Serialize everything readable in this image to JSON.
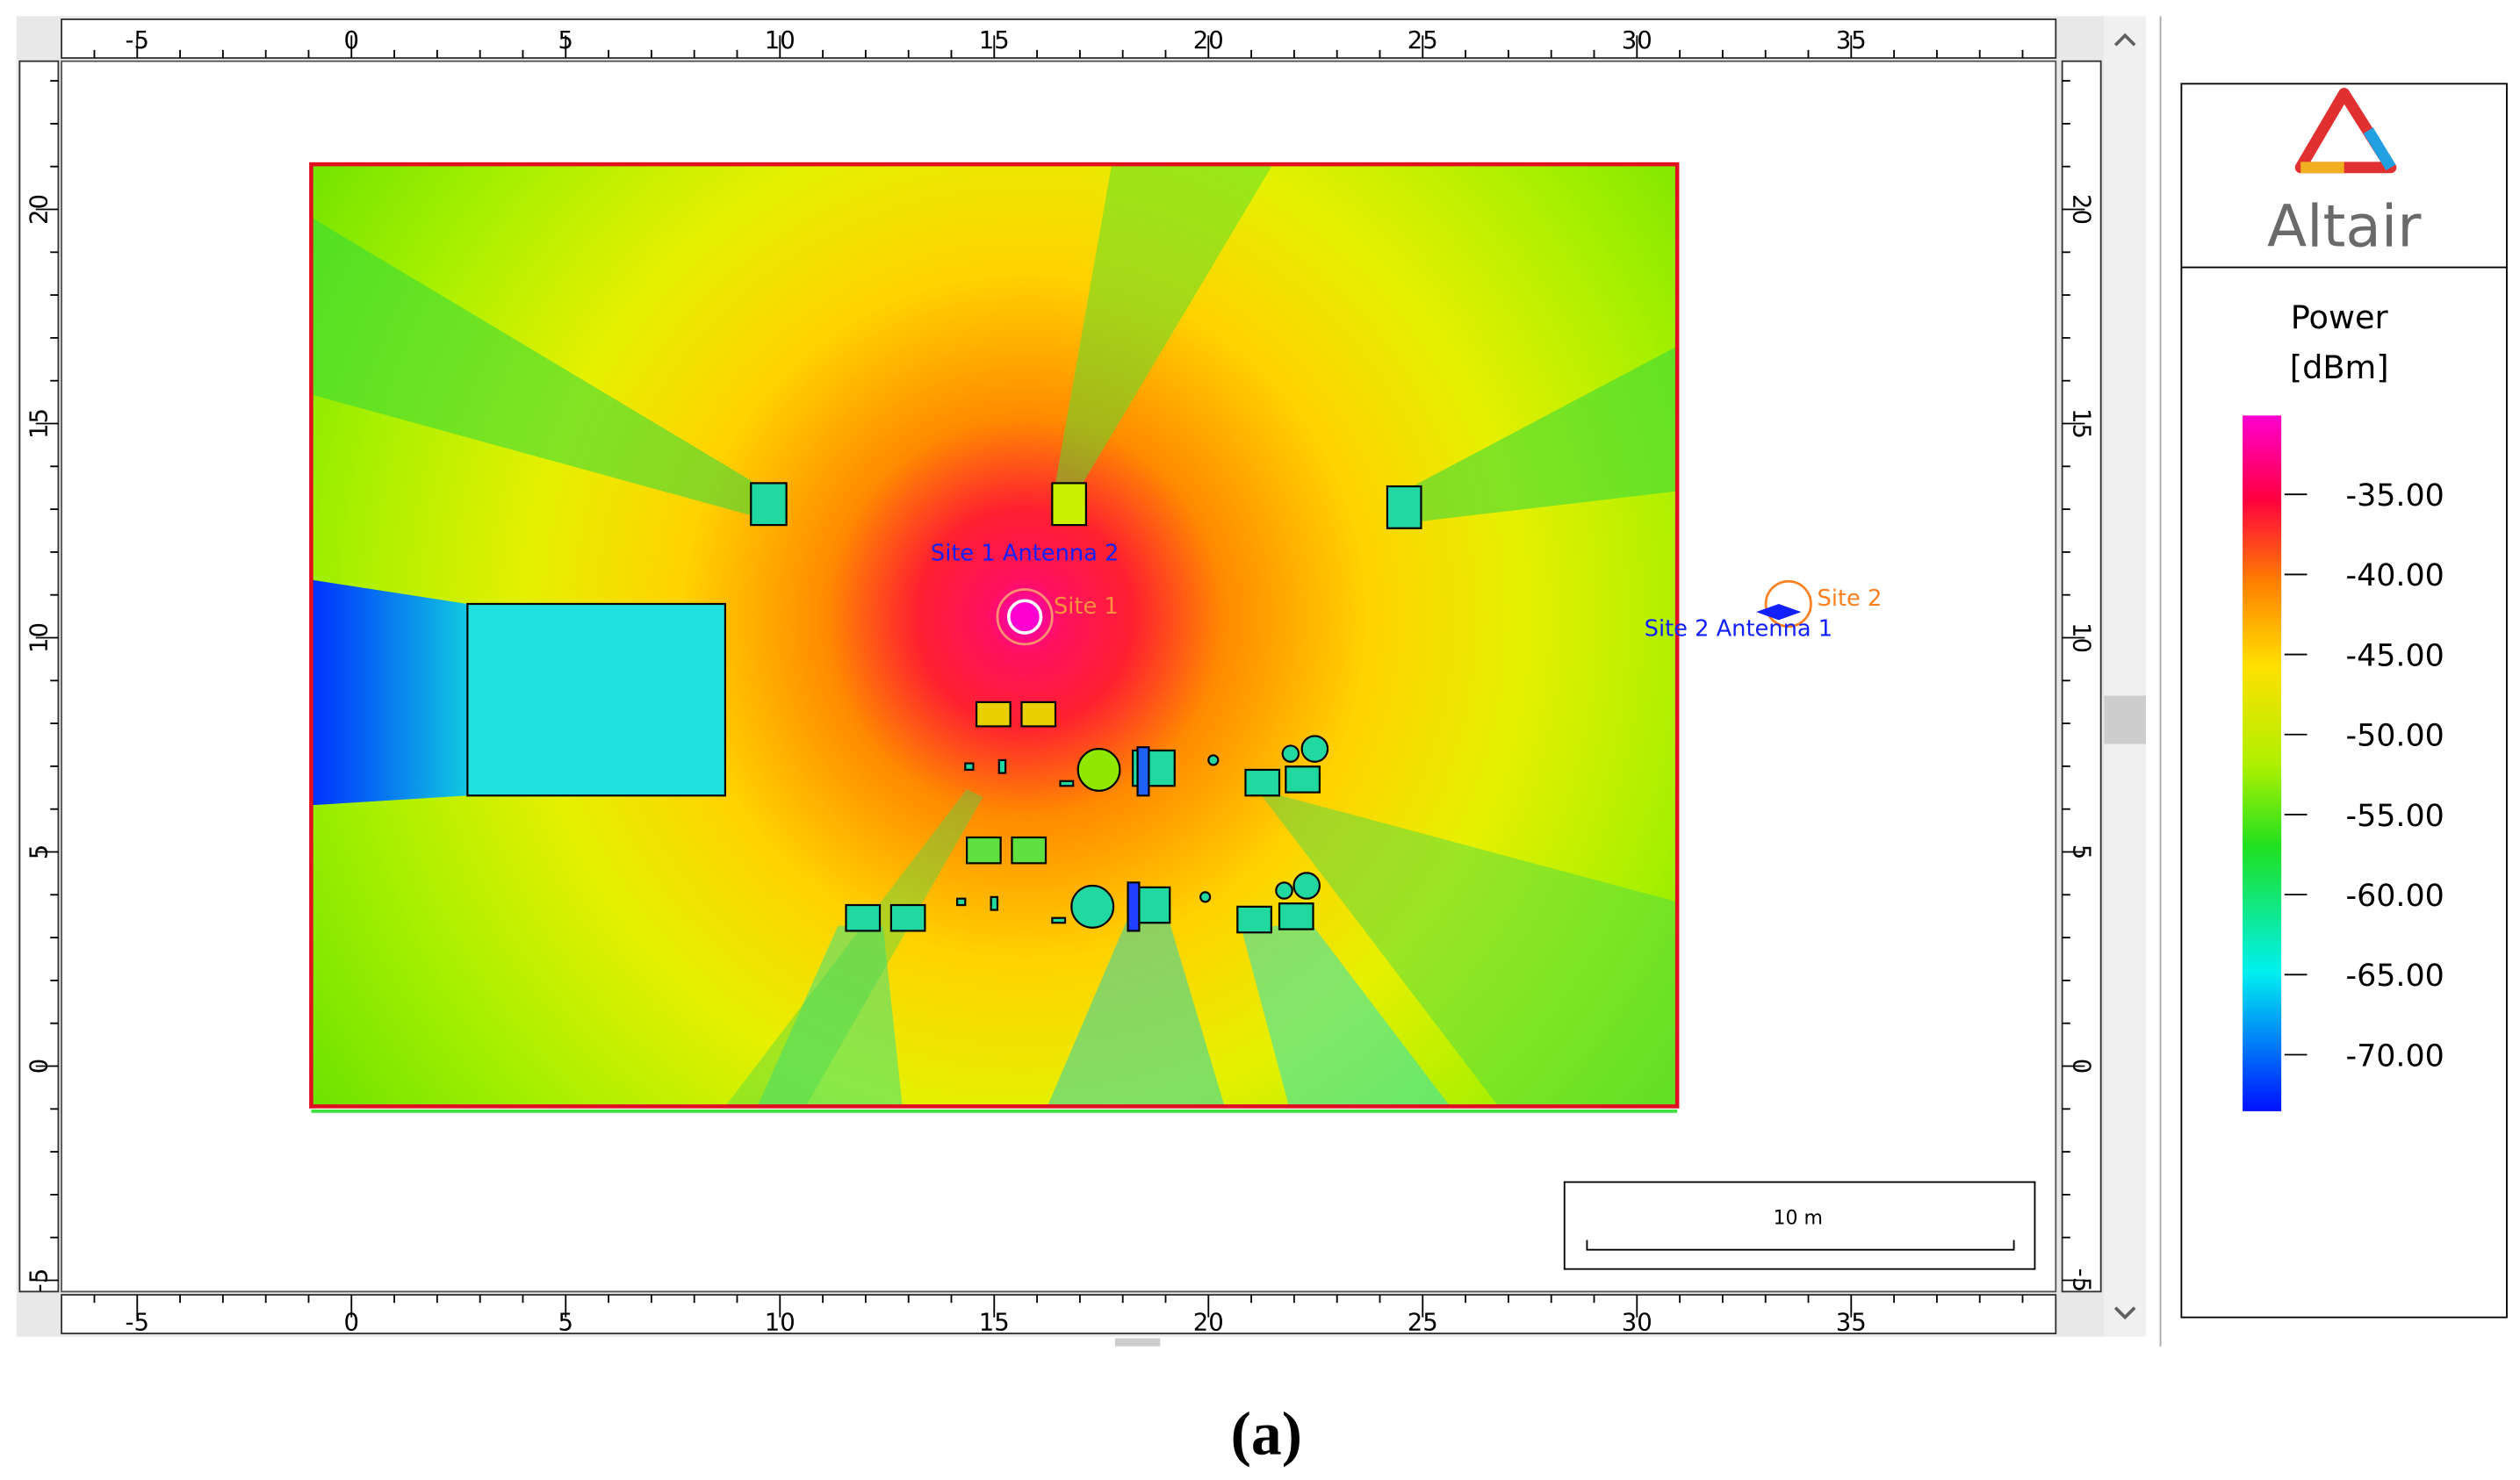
{
  "rulers": {
    "x_labels": [
      "-5",
      "0",
      "5",
      "10",
      "15",
      "20",
      "25",
      "30",
      "35"
    ],
    "y_labels": [
      "-5",
      "0",
      "5",
      "10",
      "15",
      "20"
    ]
  },
  "map": {
    "site1_antenna": "Site 1 Antenna 2",
    "site1": "Site 1",
    "site2": "Site 2",
    "site2_antenna": "Site 2 Antenna 1",
    "scale_bar": "10 m"
  },
  "legend": {
    "logo": "Altair",
    "title": "Power",
    "unit": "[dBm]",
    "ticks": [
      "-35.00",
      "-40.00",
      "-45.00",
      "-50.00",
      "-55.00",
      "-60.00",
      "-65.00",
      "-70.00"
    ]
  },
  "caption": "(a)"
}
